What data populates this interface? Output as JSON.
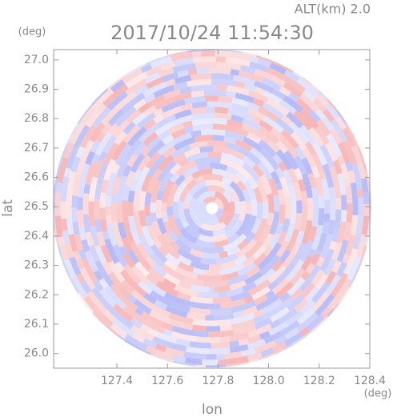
{
  "chart_data": {
    "type": "radar-image",
    "title": "2017/10/24 11:54:30",
    "annotation": "ALT(km) 2.0",
    "y_unit": "(deg)",
    "x_unit": "(deg)",
    "xlabel": "lon",
    "ylabel": "lat",
    "xlim": [
      127.15,
      128.4
    ],
    "ylim": [
      25.95,
      27.035
    ],
    "xticks": [
      127.4,
      127.6,
      127.8,
      {
        "value": 128,
        "label": "128.0"
      },
      128.2,
      128.4
    ],
    "yticks": [
      {
        "value": 26,
        "label": "26.0"
      },
      26.1,
      26.2,
      26.3,
      26.4,
      26.5,
      26.6,
      26.7,
      26.8,
      26.9,
      {
        "value": 27,
        "label": "27.0"
      }
    ]
  }
}
